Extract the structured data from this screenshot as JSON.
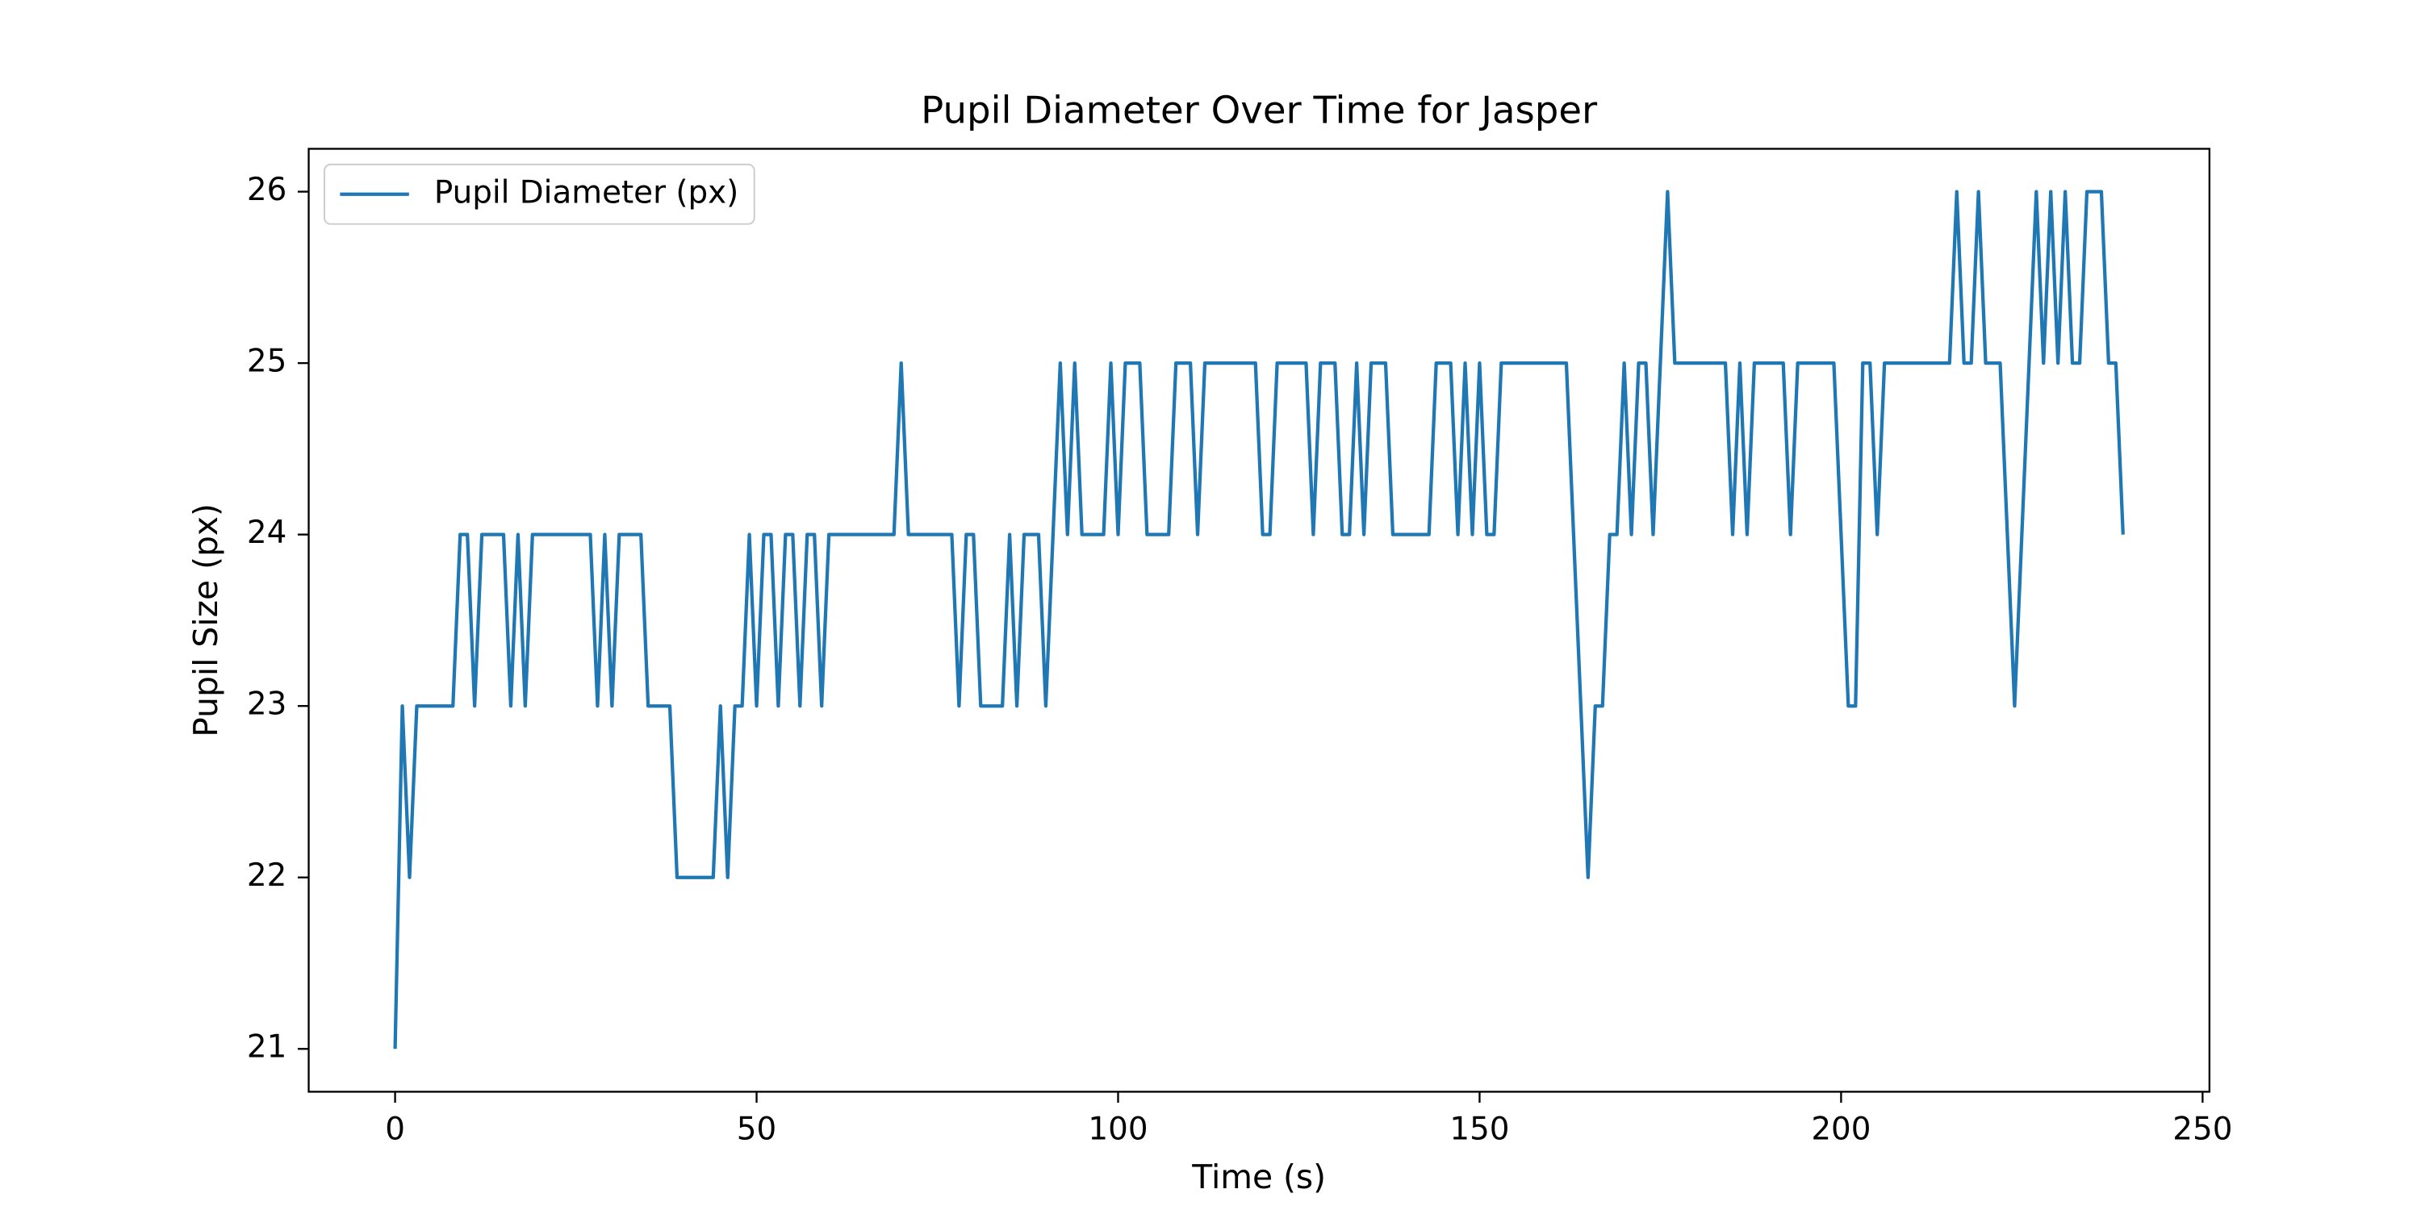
{
  "chart_data": {
    "type": "line",
    "title": "Pupil Diameter Over Time for Jasper",
    "xlabel": "Time (s)",
    "ylabel": "Pupil Size (px)",
    "x": [
      0,
      1,
      2,
      3,
      4,
      5,
      6,
      7,
      8,
      9,
      10,
      11,
      12,
      13,
      14,
      15,
      16,
      17,
      18,
      19,
      20,
      21,
      22,
      23,
      24,
      25,
      26,
      27,
      28,
      29,
      30,
      31,
      32,
      33,
      34,
      35,
      36,
      37,
      38,
      39,
      40,
      41,
      42,
      43,
      44,
      45,
      46,
      47,
      48,
      49,
      50,
      51,
      52,
      53,
      54,
      55,
      56,
      57,
      58,
      59,
      60,
      61,
      62,
      63,
      64,
      65,
      66,
      67,
      68,
      69,
      70,
      71,
      72,
      73,
      74,
      75,
      76,
      77,
      78,
      79,
      80,
      81,
      82,
      83,
      84,
      85,
      86,
      87,
      88,
      89,
      90,
      91,
      92,
      93,
      94,
      95,
      96,
      97,
      98,
      99,
      100,
      101,
      102,
      103,
      104,
      105,
      106,
      107,
      108,
      109,
      110,
      111,
      112,
      113,
      114,
      115,
      116,
      117,
      118,
      119,
      120,
      121,
      122,
      123,
      124,
      125,
      126,
      127,
      128,
      129,
      130,
      131,
      132,
      133,
      134,
      135,
      136,
      137,
      138,
      139,
      140,
      141,
      142,
      143,
      144,
      145,
      146,
      147,
      148,
      149,
      150,
      151,
      152,
      153,
      154,
      155,
      156,
      157,
      158,
      159,
      160,
      161,
      162,
      163,
      164,
      165,
      166,
      167,
      168,
      169,
      170,
      171,
      172,
      173,
      174,
      175,
      176,
      177,
      178,
      179,
      180,
      181,
      182,
      183,
      184,
      185,
      186,
      187,
      188,
      189,
      190,
      191,
      192,
      193,
      194,
      195,
      196,
      197,
      198,
      199,
      200,
      201,
      202,
      203,
      204,
      205,
      206,
      207,
      208,
      209,
      210,
      211,
      212,
      213,
      214,
      215,
      216,
      217,
      218,
      219,
      220,
      221,
      222,
      223,
      224,
      225,
      226,
      227,
      228,
      229,
      230,
      231,
      232,
      233,
      234,
      235,
      236,
      237,
      238,
      239
    ],
    "series": [
      {
        "name": "Pupil Diameter (px)",
        "color": "#1f77b4",
        "values": [
          21,
          23,
          22,
          23,
          23,
          23,
          23,
          23,
          23,
          24,
          24,
          23,
          24,
          24,
          24,
          24,
          23,
          24,
          23,
          24,
          24,
          24,
          24,
          24,
          24,
          24,
          24,
          24,
          23,
          24,
          23,
          24,
          24,
          24,
          24,
          23,
          23,
          23,
          23,
          22,
          22,
          22,
          22,
          22,
          22,
          23,
          22,
          23,
          23,
          24,
          23,
          24,
          24,
          23,
          24,
          24,
          23,
          24,
          24,
          23,
          24,
          24,
          24,
          24,
          24,
          24,
          24,
          24,
          24,
          24,
          25,
          24,
          24,
          24,
          24,
          24,
          24,
          24,
          23,
          24,
          24,
          23,
          23,
          23,
          23,
          24,
          23,
          24,
          24,
          24,
          23,
          24,
          25,
          24,
          25,
          24,
          24,
          24,
          24,
          25,
          24,
          25,
          25,
          25,
          24,
          24,
          24,
          24,
          25,
          25,
          25,
          24,
          25,
          25,
          25,
          25,
          25,
          25,
          25,
          25,
          24,
          24,
          25,
          25,
          25,
          25,
          25,
          24,
          25,
          25,
          25,
          24,
          24,
          25,
          24,
          25,
          25,
          25,
          24,
          24,
          24,
          24,
          24,
          24,
          25,
          25,
          25,
          24,
          25,
          24,
          25,
          24,
          24,
          25,
          25,
          25,
          25,
          25,
          25,
          25,
          25,
          25,
          25,
          24,
          23,
          22,
          23,
          23,
          24,
          24,
          25,
          24,
          25,
          25,
          24,
          25,
          26,
          25,
          25,
          25,
          25,
          25,
          25,
          25,
          25,
          24,
          25,
          24,
          25,
          25,
          25,
          25,
          25,
          24,
          25,
          25,
          25,
          25,
          25,
          25,
          24,
          23,
          23,
          25,
          25,
          24,
          25,
          25,
          25,
          25,
          25,
          25,
          25,
          25,
          25,
          25,
          26,
          25,
          25,
          26,
          25,
          25,
          25,
          24,
          23,
          24,
          25,
          26,
          25,
          26,
          25,
          26,
          25,
          25,
          26,
          26,
          26,
          25,
          25,
          24
        ]
      }
    ],
    "xlim": [
      -11.95,
      250.95
    ],
    "ylim": [
      20.75,
      26.25
    ],
    "xticks": [
      0,
      50,
      100,
      150,
      200,
      250
    ],
    "yticks": [
      21,
      22,
      23,
      24,
      25,
      26
    ],
    "legend": "upper left",
    "grid": false
  }
}
